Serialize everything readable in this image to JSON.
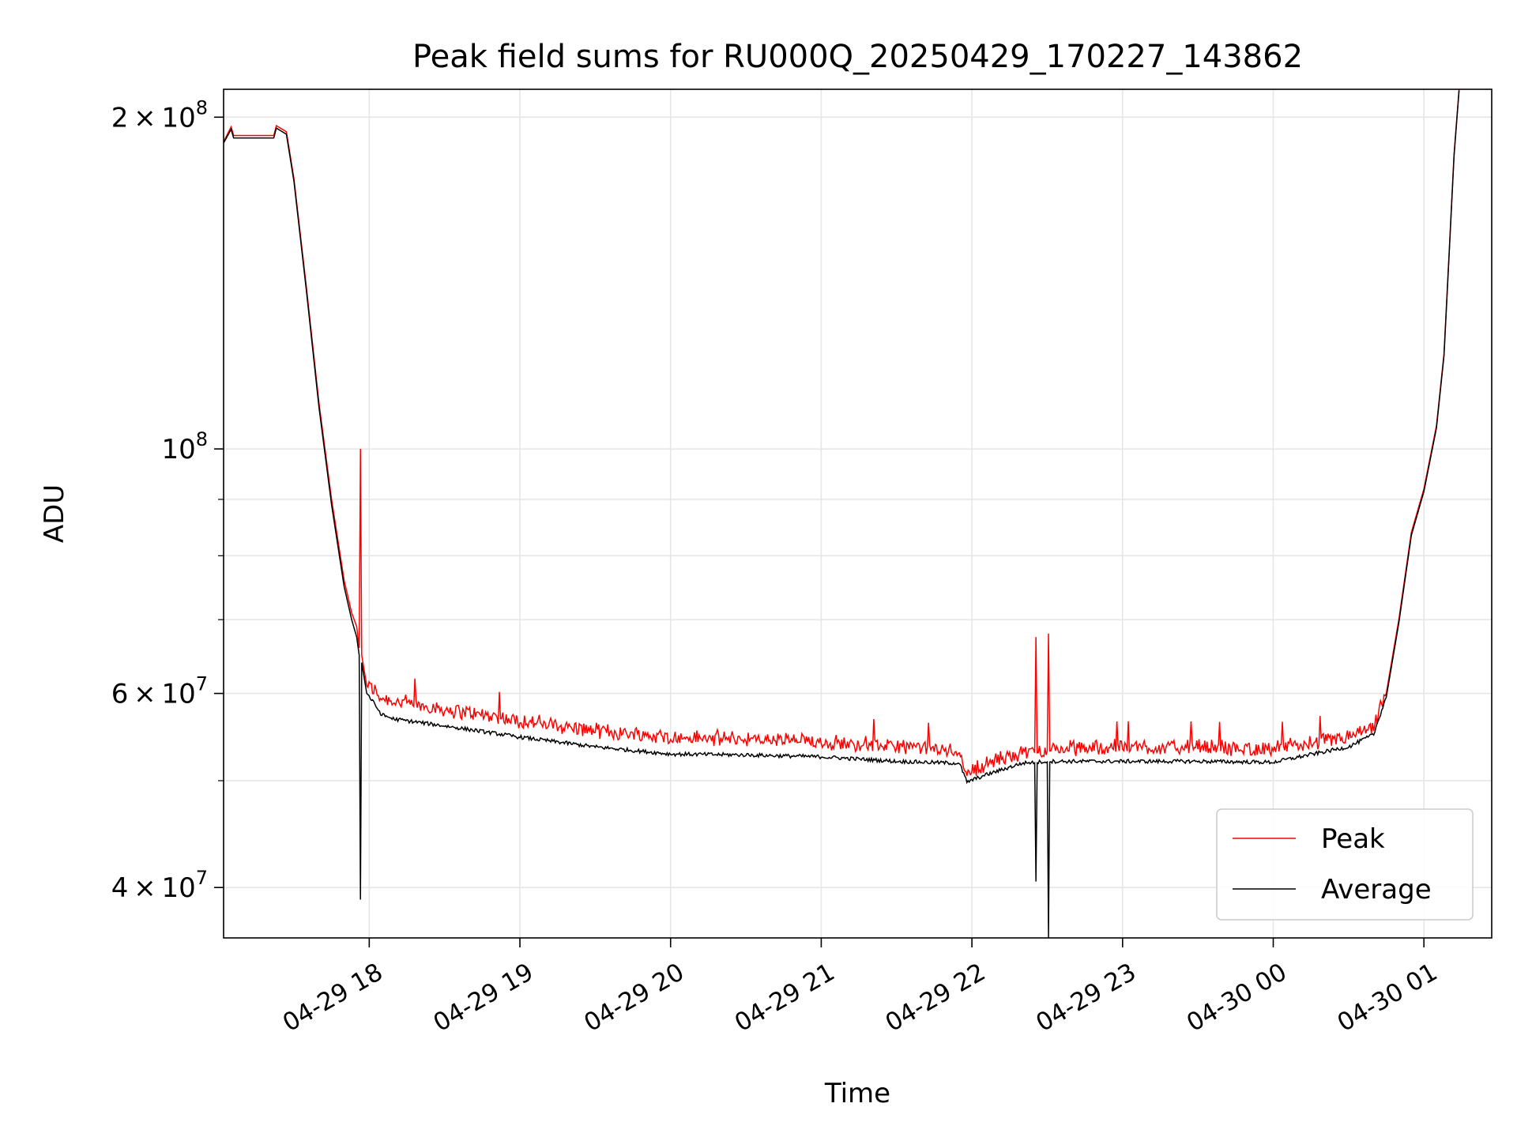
{
  "chart_data": {
    "type": "line",
    "title": "Peak field sums for RU000Q_20250429_170227_143862",
    "xlabel": "Time",
    "ylabel": "ADU",
    "y_scale": "log",
    "x_range": [
      "04-29 17:02",
      "04-30 01:27"
    ],
    "ylim": [
      36000000,
      212000000
    ],
    "x_ticks": [
      {
        "t": "04-29 18:00",
        "label": "04-29 18"
      },
      {
        "t": "04-29 19:00",
        "label": "04-29 19"
      },
      {
        "t": "04-29 20:00",
        "label": "04-29 20"
      },
      {
        "t": "04-29 21:00",
        "label": "04-29 21"
      },
      {
        "t": "04-29 22:00",
        "label": "04-29 22"
      },
      {
        "t": "04-29 23:00",
        "label": "04-29 23"
      },
      {
        "t": "04-30 00:00",
        "label": "04-30 00"
      },
      {
        "t": "04-30 01:00",
        "label": "04-30 01"
      }
    ],
    "y_major_ticks": [
      {
        "value": 40000000,
        "mantissa": "4",
        "base": "10",
        "exp": "7"
      },
      {
        "value": 60000000,
        "mantissa": "6",
        "base": "10",
        "exp": "7"
      },
      {
        "value": 100000000,
        "mantissa": "",
        "base": "10",
        "exp": "8"
      },
      {
        "value": 200000000,
        "mantissa": "2",
        "base": "10",
        "exp": "8"
      }
    ],
    "y_minor_grid": [
      50000000,
      70000000,
      80000000,
      90000000
    ],
    "grid": true,
    "legend_position": "lower right",
    "series": [
      {
        "name": "Peak",
        "color": "#ff0000",
        "points": [
          [
            "04-29 17:02",
            190000000
          ],
          [
            "04-29 17:05",
            196000000
          ],
          [
            "04-29 17:06",
            192500000
          ],
          [
            "04-29 17:22",
            192500000
          ],
          [
            "04-29 17:23",
            196500000
          ],
          [
            "04-29 17:27",
            194000000
          ],
          [
            "04-29 17:30",
            176000000
          ],
          [
            "04-29 17:35",
            140000000
          ],
          [
            "04-29 17:40",
            110000000
          ],
          [
            "04-29 17:45",
            90000000
          ],
          [
            "04-29 17:50",
            76000000
          ],
          [
            "04-29 17:53",
            71000000
          ],
          [
            "04-29 17:55",
            69000000
          ],
          [
            "04-29 17:56",
            66000000
          ],
          [
            "04-29 17:56:30",
            100000000
          ],
          [
            "04-29 17:57",
            65000000
          ],
          [
            "04-29 17:59",
            61000000
          ],
          [
            "04-29 18:05",
            59200000
          ],
          [
            "04-29 18:10",
            58800000
          ],
          [
            "04-29 18:30",
            57800000
          ],
          [
            "04-29 19:00",
            56400000
          ],
          [
            "04-29 19:30",
            55300000
          ],
          [
            "04-29 20:00",
            54500000
          ],
          [
            "04-29 20:30",
            54300000
          ],
          [
            "04-29 21:00",
            54000000
          ],
          [
            "04-29 21:30",
            53500000
          ],
          [
            "04-29 21:55",
            53000000
          ],
          [
            "04-29 21:58",
            50500000
          ],
          [
            "04-29 22:05",
            51500000
          ],
          [
            "04-29 22:20",
            52800000
          ],
          [
            "04-29 22:25",
            53000000
          ],
          [
            "04-29 22:25:30",
            67500000
          ],
          [
            "04-29 22:26",
            53000000
          ],
          [
            "04-29 22:30",
            53200000
          ],
          [
            "04-29 22:30:30",
            68000000
          ],
          [
            "04-29 22:31",
            53200000
          ],
          [
            "04-29 23:00",
            53400000
          ],
          [
            "04-29 23:30",
            53400000
          ],
          [
            "04-30 00:00",
            53200000
          ],
          [
            "04-30 00:30",
            54500000
          ],
          [
            "04-30 00:40",
            55500000
          ],
          [
            "04-30 00:45",
            60000000
          ],
          [
            "04-30 00:50",
            70000000
          ],
          [
            "04-30 00:55",
            84000000
          ],
          [
            "04-30 01:00",
            92000000
          ],
          [
            "04-30 01:05",
            105000000
          ],
          [
            "04-30 01:08",
            122000000
          ],
          [
            "04-30 01:10",
            150000000
          ],
          [
            "04-30 01:12",
            185000000
          ],
          [
            "04-30 01:14",
            212000000
          ]
        ],
        "noisy_from": "04-29 17:58",
        "noisy_to": "04-30 00:44"
      },
      {
        "name": "Average",
        "color": "#000000",
        "points": [
          [
            "04-29 17:02",
            189500000
          ],
          [
            "04-29 17:05",
            195000000
          ],
          [
            "04-29 17:06",
            191500000
          ],
          [
            "04-29 17:22",
            191500000
          ],
          [
            "04-29 17:23",
            195500000
          ],
          [
            "04-29 17:27",
            193000000
          ],
          [
            "04-29 17:30",
            175000000
          ],
          [
            "04-29 17:35",
            139000000
          ],
          [
            "04-29 17:40",
            109000000
          ],
          [
            "04-29 17:45",
            89000000
          ],
          [
            "04-29 17:50",
            75000000
          ],
          [
            "04-29 17:53",
            70000000
          ],
          [
            "04-29 17:55",
            67500000
          ],
          [
            "04-29 17:56",
            65000000
          ],
          [
            "04-29 17:56:30",
            39000000
          ],
          [
            "04-29 17:57",
            64000000
          ],
          [
            "04-29 17:59",
            60000000
          ],
          [
            "04-29 18:05",
            57300000
          ],
          [
            "04-29 18:10",
            56800000
          ],
          [
            "04-29 18:30",
            56000000
          ],
          [
            "04-29 19:00",
            54700000
          ],
          [
            "04-29 19:30",
            53600000
          ],
          [
            "04-29 20:00",
            52800000
          ],
          [
            "04-29 20:30",
            52700000
          ],
          [
            "04-29 21:00",
            52500000
          ],
          [
            "04-29 21:30",
            52000000
          ],
          [
            "04-29 21:55",
            51800000
          ],
          [
            "04-29 21:58",
            49800000
          ],
          [
            "04-29 22:05",
            50500000
          ],
          [
            "04-29 22:20",
            51800000
          ],
          [
            "04-29 22:25",
            51900000
          ],
          [
            "04-29 22:25:30",
            40500000
          ],
          [
            "04-29 22:26",
            51900000
          ],
          [
            "04-29 22:30",
            52000000
          ],
          [
            "04-29 22:30:30",
            36000000
          ],
          [
            "04-29 22:31",
            52000000
          ],
          [
            "04-29 23:00",
            52000000
          ],
          [
            "04-29 23:30",
            52000000
          ],
          [
            "04-30 00:00",
            51900000
          ],
          [
            "04-30 00:30",
            53600000
          ],
          [
            "04-30 00:40",
            55000000
          ],
          [
            "04-30 00:45",
            59500000
          ],
          [
            "04-30 00:50",
            69500000
          ],
          [
            "04-30 00:55",
            83500000
          ],
          [
            "04-30 01:00",
            91500000
          ],
          [
            "04-30 01:05",
            104500000
          ],
          [
            "04-30 01:08",
            121500000
          ],
          [
            "04-30 01:10",
            149500000
          ],
          [
            "04-30 01:12",
            184500000
          ],
          [
            "04-30 01:14",
            211500000
          ]
        ],
        "noisy_from": "04-29 17:58",
        "noisy_to": "04-30 00:44"
      }
    ]
  }
}
